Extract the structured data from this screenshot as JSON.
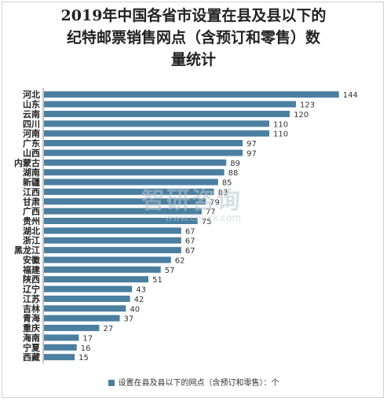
{
  "chart_data": {
    "type": "bar",
    "orientation": "horizontal",
    "title_lines": [
      "2019年中国各省市设置在县及县以下的",
      "纪特邮票销售网点（含预订和零售）数",
      "量统计"
    ],
    "categories": [
      "河北",
      "山东",
      "云南",
      "四川",
      "河南",
      "广东",
      "山西",
      "内蒙古",
      "湖南",
      "新疆",
      "江西",
      "甘肃",
      "广西",
      "贵州",
      "湖北",
      "浙江",
      "黑龙江",
      "安徽",
      "福建",
      "陕西",
      "辽宁",
      "江苏",
      "吉林",
      "青海",
      "重庆",
      "海南",
      "宁夏",
      "西藏"
    ],
    "series": [
      {
        "name": "设置在县及县以下的网点（含预订和零售）：个",
        "values": [
          144,
          123,
          120,
          110,
          110,
          97,
          97,
          89,
          88,
          85,
          83,
          79,
          77,
          75,
          67,
          67,
          67,
          62,
          57,
          51,
          43,
          42,
          40,
          37,
          27,
          17,
          16,
          15
        ]
      }
    ],
    "xlim": [
      0,
      150
    ],
    "grid": false,
    "legend_position": "bottom",
    "bar_color": "#4a7fa0"
  },
  "watermark": {
    "main": "智研咨询",
    "url": "www.chyxx.com"
  }
}
